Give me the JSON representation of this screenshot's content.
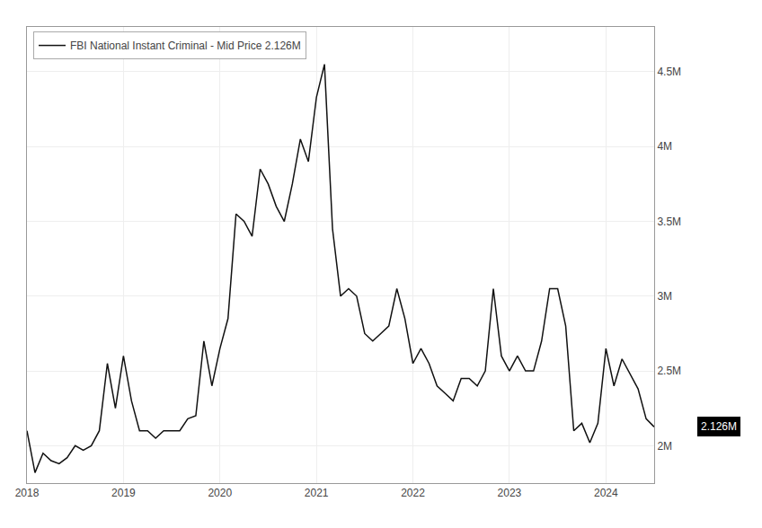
{
  "chart_data": {
    "type": "line",
    "categories": [
      "2018",
      null,
      null,
      null,
      null,
      null,
      null,
      null,
      null,
      null,
      null,
      null,
      "2019",
      null,
      null,
      null,
      null,
      null,
      null,
      null,
      null,
      null,
      null,
      null,
      "2020",
      null,
      null,
      null,
      null,
      null,
      null,
      null,
      null,
      null,
      null,
      null,
      "2021",
      null,
      null,
      null,
      null,
      null,
      null,
      null,
      null,
      null,
      null,
      null,
      "2022",
      null,
      null,
      null,
      null,
      null,
      null,
      null,
      null,
      null,
      null,
      null,
      "2023",
      null,
      null,
      null,
      null,
      null,
      null,
      null,
      null,
      null,
      null,
      null,
      "2024",
      null,
      null,
      null,
      null,
      null,
      null
    ],
    "series": [
      {
        "name": "FBI National Instant Criminal - Mid Price 2.126M",
        "color": "#111111",
        "values": [
          2.1,
          1.82,
          1.95,
          1.9,
          1.88,
          1.92,
          2.0,
          1.97,
          2.0,
          2.1,
          2.55,
          2.25,
          2.6,
          2.3,
          2.1,
          2.1,
          2.05,
          2.1,
          2.1,
          2.1,
          2.18,
          2.2,
          2.7,
          2.4,
          2.65,
          2.85,
          3.55,
          3.5,
          3.4,
          3.85,
          3.75,
          3.6,
          3.5,
          3.75,
          4.05,
          3.9,
          4.33,
          4.55,
          3.45,
          3.0,
          3.05,
          3.0,
          2.75,
          2.7,
          2.75,
          2.8,
          3.05,
          2.85,
          2.55,
          2.65,
          2.55,
          2.4,
          2.35,
          2.3,
          2.45,
          2.45,
          2.4,
          2.5,
          3.05,
          2.6,
          2.5,
          2.6,
          2.5,
          2.5,
          2.7,
          3.05,
          3.05,
          2.8,
          2.1,
          2.15,
          2.02,
          2.15,
          2.65,
          2.4,
          2.58,
          2.48,
          2.38,
          2.18,
          2.126
        ]
      }
    ],
    "ylim": [
      1.75,
      4.8
    ],
    "yticks": [
      {
        "value": 2.0,
        "label": "2M"
      },
      {
        "value": 2.5,
        "label": "2.5M"
      },
      {
        "value": 3.0,
        "label": "3M"
      },
      {
        "value": 3.5,
        "label": "3.5M"
      },
      {
        "value": 4.0,
        "label": "4M"
      },
      {
        "value": 4.5,
        "label": "4.5M"
      }
    ],
    "grid": true,
    "legend": "upper left",
    "annotations": [
      {
        "text": "2.126M",
        "y": 2.126
      }
    ]
  }
}
